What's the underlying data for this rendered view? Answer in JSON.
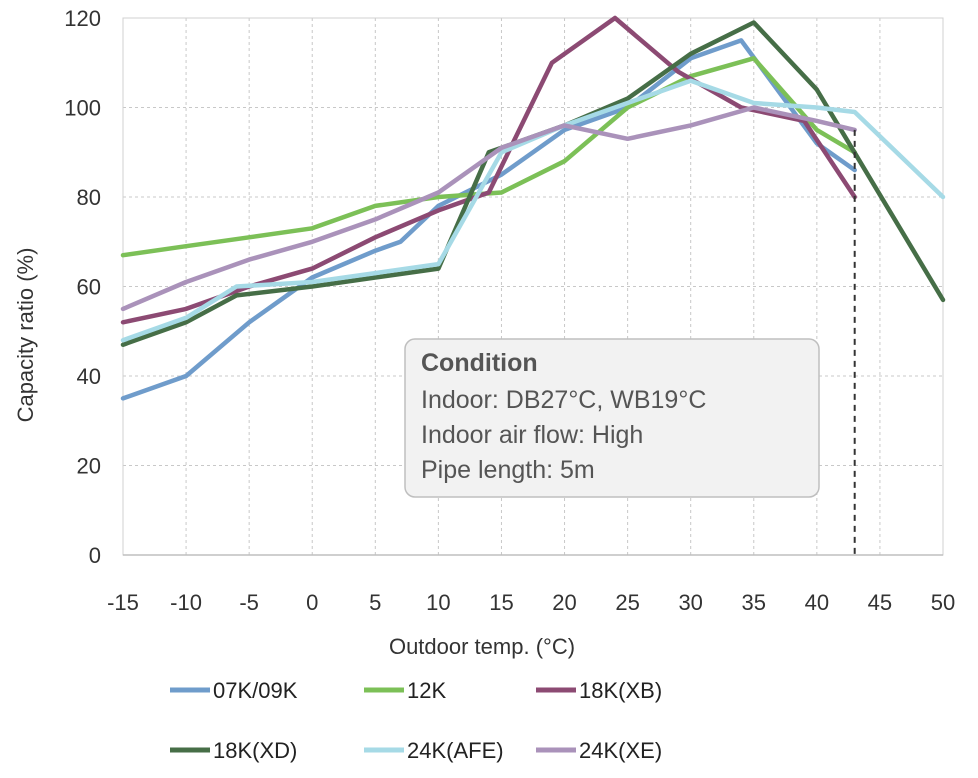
{
  "chart_data": {
    "type": "line",
    "xlabel": "Outdoor temp. (°C)",
    "ylabel": "Capacity ratio (%)",
    "xlim": [
      -15,
      50
    ],
    "ylim": [
      0,
      120
    ],
    "x_ticks": [
      "-15",
      "-10",
      "-5",
      "0",
      "5",
      "10",
      "15",
      "20",
      "25",
      "30",
      "35",
      "40",
      "45",
      "50"
    ],
    "y_ticks": [
      "0",
      "20",
      "40",
      "60",
      "80",
      "100",
      "120"
    ],
    "grid": true,
    "legend_position": "bottom",
    "annotation": {
      "title": "Condition",
      "lines": [
        "Indoor: DB27°C, WB19°C",
        "Indoor air flow: High",
        "Pipe length: 5m"
      ]
    },
    "reference_line_x": 43,
    "series": [
      {
        "name": "07K/09K",
        "color": "#6f9ccb",
        "x": [
          -15,
          -10,
          -5,
          0,
          5,
          7,
          10,
          15,
          20,
          25,
          30,
          34,
          40,
          43
        ],
        "y": [
          35,
          40,
          52,
          62,
          68,
          70,
          78,
          85,
          95,
          100,
          111,
          115,
          92,
          86
        ]
      },
      {
        "name": "12K",
        "color": "#7cc057",
        "x": [
          -15,
          -10,
          -5,
          0,
          5,
          10,
          15,
          20,
          25,
          30,
          35,
          40,
          43
        ],
        "y": [
          67,
          69,
          71,
          73,
          78,
          80,
          81,
          88,
          100,
          107,
          111,
          95,
          90
        ]
      },
      {
        "name": "18K(XB)",
        "color": "#8c4a73",
        "x": [
          -15,
          -10,
          -5,
          0,
          5,
          10,
          14,
          19,
          24,
          29,
          34,
          39,
          43
        ],
        "y": [
          52,
          55,
          60,
          64,
          71,
          77,
          81,
          110,
          120,
          108,
          100,
          97,
          80
        ]
      },
      {
        "name": "18K(XD)",
        "color": "#466e47",
        "x": [
          -15,
          -10,
          -6,
          0,
          5,
          10,
          14,
          20,
          25,
          30,
          35,
          40,
          50
        ],
        "y": [
          47,
          52,
          58,
          60,
          62,
          64,
          90,
          96,
          102,
          112,
          119,
          104,
          57
        ]
      },
      {
        "name": "24K(AFE)",
        "color": "#a6dae6",
        "x": [
          -15,
          -10,
          -6,
          0,
          5,
          10,
          15,
          20,
          25,
          30,
          35,
          40,
          43,
          50
        ],
        "y": [
          48,
          53,
          60,
          61,
          63,
          65,
          90,
          96,
          101,
          106,
          101,
          100,
          99,
          80
        ]
      },
      {
        "name": "24K(XE)",
        "color": "#aa92ba",
        "x": [
          -15,
          -10,
          -5,
          0,
          5,
          10,
          15,
          20,
          25,
          30,
          35,
          40,
          43
        ],
        "y": [
          55,
          61,
          66,
          70,
          75,
          81,
          91,
          96,
          93,
          96,
          100,
          97,
          95
        ]
      }
    ]
  }
}
